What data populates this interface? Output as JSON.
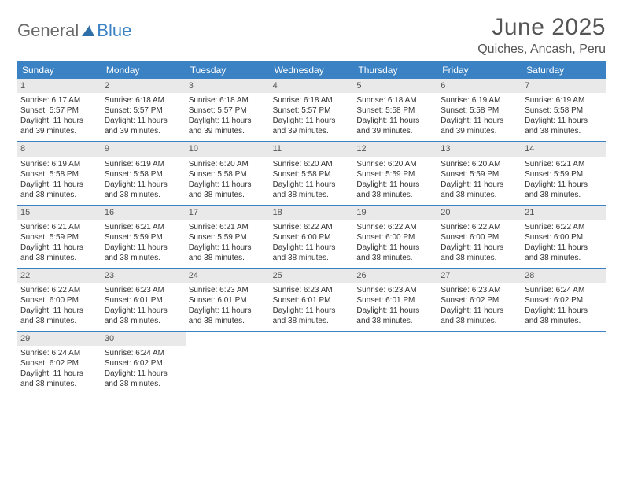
{
  "logo": {
    "part1": "General",
    "part2": "Blue"
  },
  "title": "June 2025",
  "location": "Quiches, Ancash, Peru",
  "weekdays": [
    "Sunday",
    "Monday",
    "Tuesday",
    "Wednesday",
    "Thursday",
    "Friday",
    "Saturday"
  ],
  "colors": {
    "header_bg": "#3b82c4",
    "header_text": "#ffffff",
    "daynum_bg": "#e9e9e9",
    "text": "#333333",
    "logo_gray": "#6a6a6a",
    "logo_blue": "#3b82c4"
  },
  "weeks": [
    [
      {
        "n": "1",
        "sr": "Sunrise: 6:17 AM",
        "ss": "Sunset: 5:57 PM",
        "dl": "Daylight: 11 hours and 39 minutes."
      },
      {
        "n": "2",
        "sr": "Sunrise: 6:18 AM",
        "ss": "Sunset: 5:57 PM",
        "dl": "Daylight: 11 hours and 39 minutes."
      },
      {
        "n": "3",
        "sr": "Sunrise: 6:18 AM",
        "ss": "Sunset: 5:57 PM",
        "dl": "Daylight: 11 hours and 39 minutes."
      },
      {
        "n": "4",
        "sr": "Sunrise: 6:18 AM",
        "ss": "Sunset: 5:57 PM",
        "dl": "Daylight: 11 hours and 39 minutes."
      },
      {
        "n": "5",
        "sr": "Sunrise: 6:18 AM",
        "ss": "Sunset: 5:58 PM",
        "dl": "Daylight: 11 hours and 39 minutes."
      },
      {
        "n": "6",
        "sr": "Sunrise: 6:19 AM",
        "ss": "Sunset: 5:58 PM",
        "dl": "Daylight: 11 hours and 39 minutes."
      },
      {
        "n": "7",
        "sr": "Sunrise: 6:19 AM",
        "ss": "Sunset: 5:58 PM",
        "dl": "Daylight: 11 hours and 38 minutes."
      }
    ],
    [
      {
        "n": "8",
        "sr": "Sunrise: 6:19 AM",
        "ss": "Sunset: 5:58 PM",
        "dl": "Daylight: 11 hours and 38 minutes."
      },
      {
        "n": "9",
        "sr": "Sunrise: 6:19 AM",
        "ss": "Sunset: 5:58 PM",
        "dl": "Daylight: 11 hours and 38 minutes."
      },
      {
        "n": "10",
        "sr": "Sunrise: 6:20 AM",
        "ss": "Sunset: 5:58 PM",
        "dl": "Daylight: 11 hours and 38 minutes."
      },
      {
        "n": "11",
        "sr": "Sunrise: 6:20 AM",
        "ss": "Sunset: 5:58 PM",
        "dl": "Daylight: 11 hours and 38 minutes."
      },
      {
        "n": "12",
        "sr": "Sunrise: 6:20 AM",
        "ss": "Sunset: 5:59 PM",
        "dl": "Daylight: 11 hours and 38 minutes."
      },
      {
        "n": "13",
        "sr": "Sunrise: 6:20 AM",
        "ss": "Sunset: 5:59 PM",
        "dl": "Daylight: 11 hours and 38 minutes."
      },
      {
        "n": "14",
        "sr": "Sunrise: 6:21 AM",
        "ss": "Sunset: 5:59 PM",
        "dl": "Daylight: 11 hours and 38 minutes."
      }
    ],
    [
      {
        "n": "15",
        "sr": "Sunrise: 6:21 AM",
        "ss": "Sunset: 5:59 PM",
        "dl": "Daylight: 11 hours and 38 minutes."
      },
      {
        "n": "16",
        "sr": "Sunrise: 6:21 AM",
        "ss": "Sunset: 5:59 PM",
        "dl": "Daylight: 11 hours and 38 minutes."
      },
      {
        "n": "17",
        "sr": "Sunrise: 6:21 AM",
        "ss": "Sunset: 5:59 PM",
        "dl": "Daylight: 11 hours and 38 minutes."
      },
      {
        "n": "18",
        "sr": "Sunrise: 6:22 AM",
        "ss": "Sunset: 6:00 PM",
        "dl": "Daylight: 11 hours and 38 minutes."
      },
      {
        "n": "19",
        "sr": "Sunrise: 6:22 AM",
        "ss": "Sunset: 6:00 PM",
        "dl": "Daylight: 11 hours and 38 minutes."
      },
      {
        "n": "20",
        "sr": "Sunrise: 6:22 AM",
        "ss": "Sunset: 6:00 PM",
        "dl": "Daylight: 11 hours and 38 minutes."
      },
      {
        "n": "21",
        "sr": "Sunrise: 6:22 AM",
        "ss": "Sunset: 6:00 PM",
        "dl": "Daylight: 11 hours and 38 minutes."
      }
    ],
    [
      {
        "n": "22",
        "sr": "Sunrise: 6:22 AM",
        "ss": "Sunset: 6:00 PM",
        "dl": "Daylight: 11 hours and 38 minutes."
      },
      {
        "n": "23",
        "sr": "Sunrise: 6:23 AM",
        "ss": "Sunset: 6:01 PM",
        "dl": "Daylight: 11 hours and 38 minutes."
      },
      {
        "n": "24",
        "sr": "Sunrise: 6:23 AM",
        "ss": "Sunset: 6:01 PM",
        "dl": "Daylight: 11 hours and 38 minutes."
      },
      {
        "n": "25",
        "sr": "Sunrise: 6:23 AM",
        "ss": "Sunset: 6:01 PM",
        "dl": "Daylight: 11 hours and 38 minutes."
      },
      {
        "n": "26",
        "sr": "Sunrise: 6:23 AM",
        "ss": "Sunset: 6:01 PM",
        "dl": "Daylight: 11 hours and 38 minutes."
      },
      {
        "n": "27",
        "sr": "Sunrise: 6:23 AM",
        "ss": "Sunset: 6:02 PM",
        "dl": "Daylight: 11 hours and 38 minutes."
      },
      {
        "n": "28",
        "sr": "Sunrise: 6:24 AM",
        "ss": "Sunset: 6:02 PM",
        "dl": "Daylight: 11 hours and 38 minutes."
      }
    ],
    [
      {
        "n": "29",
        "sr": "Sunrise: 6:24 AM",
        "ss": "Sunset: 6:02 PM",
        "dl": "Daylight: 11 hours and 38 minutes."
      },
      {
        "n": "30",
        "sr": "Sunrise: 6:24 AM",
        "ss": "Sunset: 6:02 PM",
        "dl": "Daylight: 11 hours and 38 minutes."
      },
      null,
      null,
      null,
      null,
      null
    ]
  ]
}
